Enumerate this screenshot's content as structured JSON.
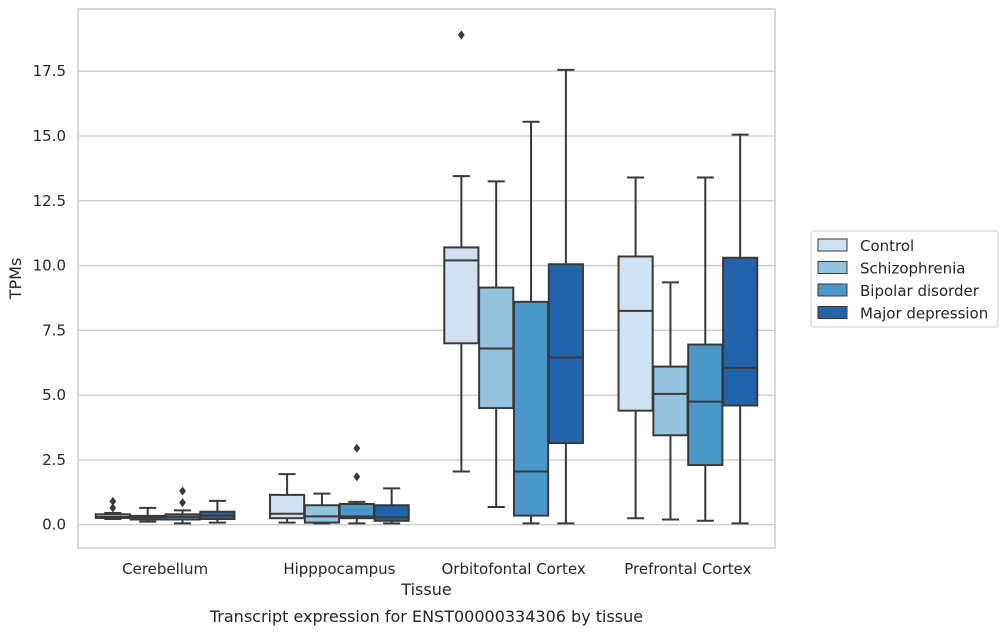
{
  "chart_data": {
    "type": "box",
    "title": "",
    "caption": "Transcript expression for ENST00000334306 by tissue",
    "xlabel": "Tissue",
    "ylabel": "TPMs",
    "ylim": [
      -0.9,
      19.9
    ],
    "yticks": [
      0.0,
      2.5,
      5.0,
      7.5,
      10.0,
      12.5,
      15.0,
      17.5
    ],
    "ytick_labels": [
      "0.0",
      "2.5",
      "5.0",
      "7.5",
      "10.0",
      "12.5",
      "15.0",
      "17.5"
    ],
    "grid": "horizontal",
    "legend_position": "right",
    "categories": [
      "Cerebellum",
      "Hipppocampus",
      "Orbitofontal Cortex",
      "Prefrontal Cortex"
    ],
    "series": [
      {
        "name": "Control",
        "color": "#d0e1f2",
        "boxes": [
          {
            "whislo": 0.22,
            "q1": 0.26,
            "med": 0.3,
            "q3": 0.4,
            "whishi": 0.45,
            "fliers": [
              0.65,
              0.9
            ]
          },
          {
            "whislo": 0.08,
            "q1": 0.25,
            "med": 0.42,
            "q3": 1.15,
            "whishi": 1.95,
            "fliers": []
          },
          {
            "whislo": 2.05,
            "q1": 7.0,
            "med": 10.2,
            "q3": 10.7,
            "whishi": 13.45,
            "fliers": [
              18.9
            ]
          },
          {
            "whislo": 0.25,
            "q1": 4.4,
            "med": 8.25,
            "q3": 10.35,
            "whishi": 13.4,
            "fliers": []
          }
        ]
      },
      {
        "name": "Schizophrenia",
        "color": "#94c4df",
        "boxes": [
          {
            "whislo": 0.12,
            "q1": 0.2,
            "med": 0.28,
            "q3": 0.34,
            "whishi": 0.65,
            "fliers": []
          },
          {
            "whislo": 0.05,
            "q1": 0.08,
            "med": 0.32,
            "q3": 0.75,
            "whishi": 1.2,
            "fliers": []
          },
          {
            "whislo": 0.68,
            "q1": 4.5,
            "med": 6.8,
            "q3": 9.15,
            "whishi": 13.25,
            "fliers": []
          },
          {
            "whislo": 0.2,
            "q1": 3.45,
            "med": 5.05,
            "q3": 6.1,
            "whishi": 9.35,
            "fliers": []
          }
        ]
      },
      {
        "name": "Bipolar disorder",
        "color": "#4a98c9",
        "boxes": [
          {
            "whislo": 0.05,
            "q1": 0.2,
            "med": 0.3,
            "q3": 0.4,
            "whishi": 0.55,
            "fliers": [
              0.85,
              1.3
            ]
          },
          {
            "whislo": 0.05,
            "q1": 0.25,
            "med": 0.32,
            "q3": 0.8,
            "whishi": 0.88,
            "fliers": [
              1.85,
              2.95
            ]
          },
          {
            "whislo": 0.05,
            "q1": 0.35,
            "med": 2.05,
            "q3": 8.6,
            "whishi": 15.55,
            "fliers": []
          },
          {
            "whislo": 0.15,
            "q1": 2.3,
            "med": 4.75,
            "q3": 6.95,
            "whishi": 13.4,
            "fliers": []
          }
        ]
      },
      {
        "name": "Major depression",
        "color": "#2164ab",
        "boxes": [
          {
            "whislo": 0.08,
            "q1": 0.22,
            "med": 0.35,
            "q3": 0.5,
            "whishi": 0.92,
            "fliers": []
          },
          {
            "whislo": 0.05,
            "q1": 0.15,
            "med": 0.28,
            "q3": 0.75,
            "whishi": 1.4,
            "fliers": []
          },
          {
            "whislo": 0.05,
            "q1": 3.15,
            "med": 6.45,
            "q3": 10.05,
            "whishi": 17.55,
            "fliers": []
          },
          {
            "whislo": 0.05,
            "q1": 4.6,
            "med": 6.05,
            "q3": 10.3,
            "whishi": 15.05,
            "fliers": []
          }
        ]
      }
    ]
  }
}
